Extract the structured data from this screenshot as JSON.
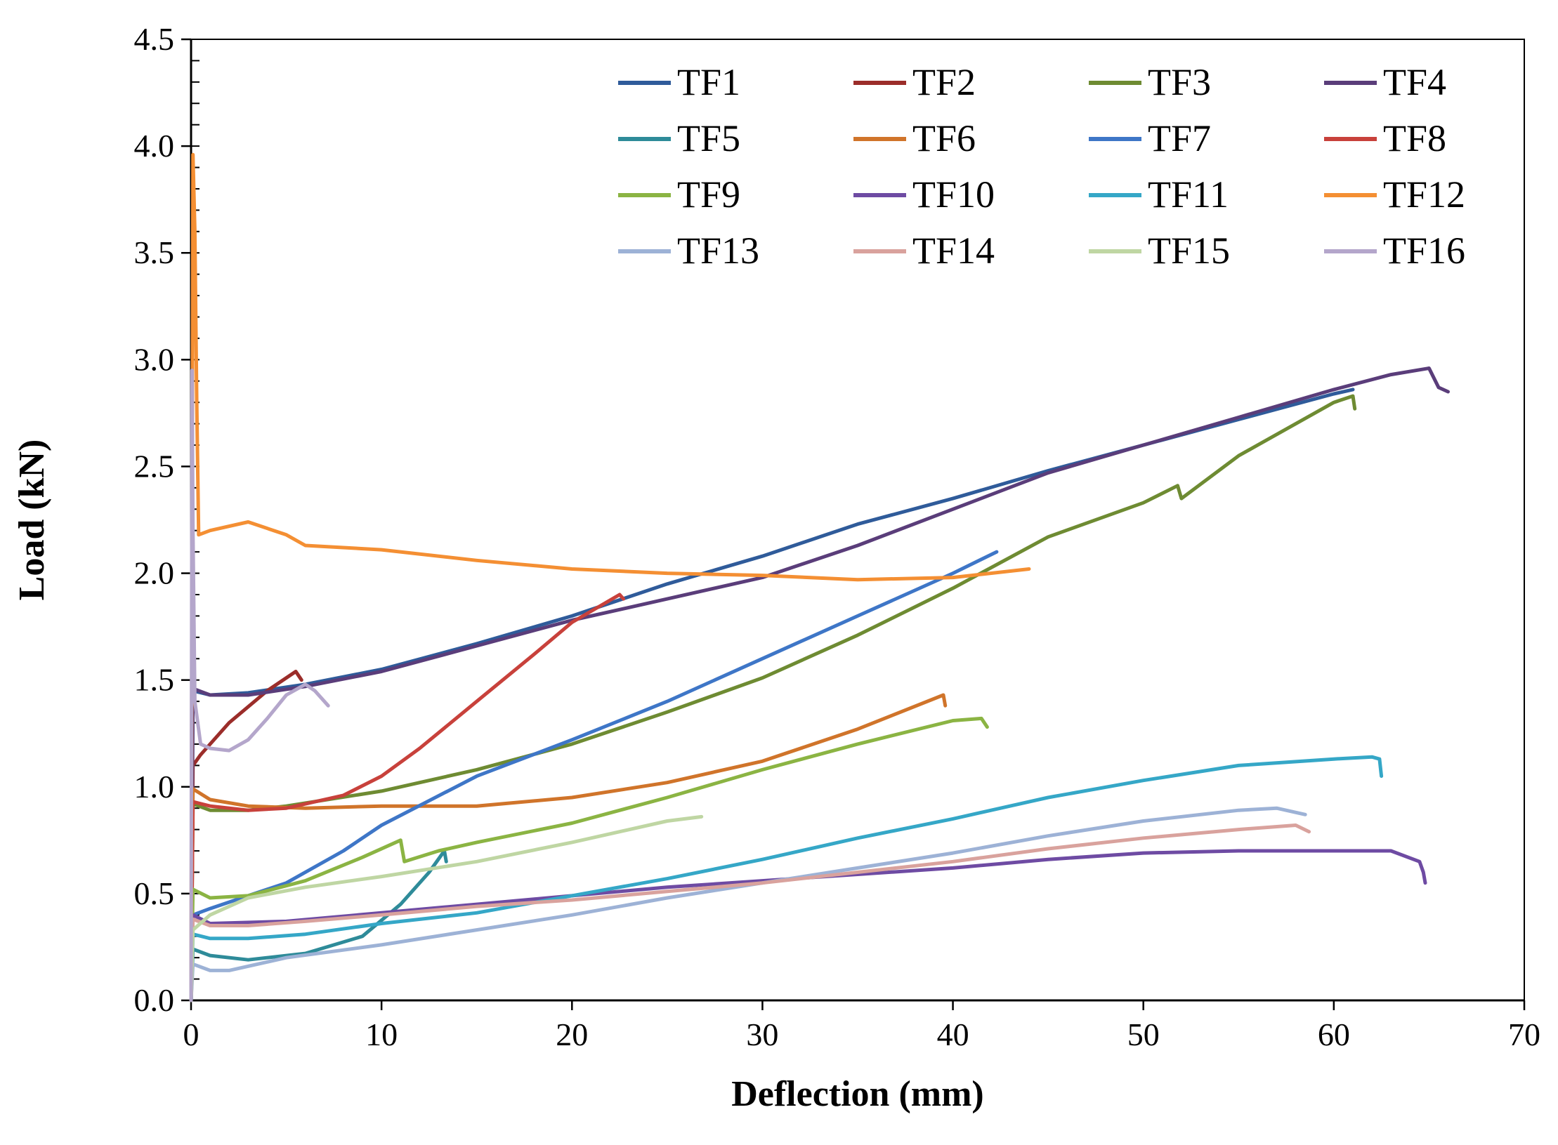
{
  "chart_data": {
    "type": "line",
    "title": "",
    "xlabel": "Deflection (mm)",
    "ylabel": "Load (kN)",
    "xlim": [
      0,
      70
    ],
    "ylim": [
      0,
      4.5
    ],
    "xticks": [
      0,
      10,
      20,
      30,
      40,
      50,
      60,
      70
    ],
    "yticks": [
      0.0,
      0.5,
      1.0,
      1.5,
      2.0,
      2.5,
      3.0,
      3.5,
      4.0,
      4.5
    ],
    "xtick_labels": [
      "0",
      "10",
      "20",
      "30",
      "40",
      "50",
      "60",
      "70"
    ],
    "ytick_labels": [
      "0.0",
      "0.5",
      "1.0",
      "1.5",
      "2.0",
      "2.5",
      "3.0",
      "3.5",
      "4.0",
      "4.5"
    ],
    "grid": false,
    "legend_position": "top-right",
    "legend_columns": 4,
    "series": [
      {
        "name": "TF1",
        "color": "#2F5B9A",
        "x": [
          0,
          0.1,
          1,
          3,
          6,
          10,
          15,
          20,
          25,
          30,
          35,
          40,
          45,
          50,
          55,
          60,
          61
        ],
        "y": [
          0,
          1.45,
          1.43,
          1.44,
          1.48,
          1.55,
          1.67,
          1.8,
          1.95,
          2.08,
          2.23,
          2.35,
          2.48,
          2.6,
          2.72,
          2.84,
          2.86
        ]
      },
      {
        "name": "TF2",
        "color": "#9B2D2A",
        "x": [
          0,
          0.1,
          0.5,
          2,
          4,
          5.5,
          5.8
        ],
        "y": [
          0,
          1.1,
          1.15,
          1.3,
          1.45,
          1.54,
          1.5
        ]
      },
      {
        "name": "TF3",
        "color": "#6E8B32",
        "x": [
          0,
          0.1,
          1,
          3,
          5,
          10,
          15,
          20,
          25,
          30,
          35,
          40,
          45,
          50,
          51.8,
          52,
          55,
          60,
          61,
          61.1
        ],
        "y": [
          0,
          0.92,
          0.89,
          0.89,
          0.91,
          0.98,
          1.08,
          1.2,
          1.35,
          1.51,
          1.71,
          1.93,
          2.17,
          2.33,
          2.41,
          2.35,
          2.55,
          2.8,
          2.83,
          2.77
        ]
      },
      {
        "name": "TF4",
        "color": "#5A3D7A",
        "x": [
          0,
          0.1,
          1,
          3,
          6,
          10,
          15,
          20,
          25,
          30,
          35,
          40,
          45,
          50,
          55,
          60,
          63,
          65,
          65.5,
          66
        ],
        "y": [
          0,
          1.46,
          1.43,
          1.43,
          1.47,
          1.54,
          1.66,
          1.78,
          1.88,
          1.98,
          2.13,
          2.3,
          2.47,
          2.6,
          2.73,
          2.86,
          2.93,
          2.96,
          2.87,
          2.85
        ]
      },
      {
        "name": "TF5",
        "color": "#2E8B99",
        "x": [
          0,
          0.1,
          1,
          3,
          6,
          9,
          11,
          12.5,
          13.3,
          13.4
        ],
        "y": [
          0,
          0.24,
          0.21,
          0.19,
          0.22,
          0.3,
          0.45,
          0.6,
          0.7,
          0.65
        ]
      },
      {
        "name": "TF6",
        "color": "#D0742A",
        "x": [
          0,
          0.1,
          1,
          3,
          6,
          10,
          15,
          20,
          25,
          30,
          35,
          39.5,
          39.6
        ],
        "y": [
          0,
          0.99,
          0.94,
          0.91,
          0.9,
          0.91,
          0.91,
          0.95,
          1.02,
          1.12,
          1.27,
          1.43,
          1.38
        ]
      },
      {
        "name": "TF7",
        "color": "#3E76C7",
        "x": [
          0,
          0.1,
          1,
          3,
          5,
          8,
          10,
          15,
          20,
          25,
          30,
          35,
          40,
          42.3
        ],
        "y": [
          0,
          0.4,
          0.43,
          0.49,
          0.55,
          0.7,
          0.82,
          1.05,
          1.22,
          1.4,
          1.6,
          1.8,
          2.0,
          2.1
        ]
      },
      {
        "name": "TF8",
        "color": "#C8413B",
        "x": [
          0,
          0.1,
          1,
          3,
          5,
          8,
          10,
          12,
          15,
          18,
          20,
          22.5,
          22.7
        ],
        "y": [
          0,
          0.93,
          0.91,
          0.89,
          0.9,
          0.96,
          1.05,
          1.18,
          1.4,
          1.62,
          1.77,
          1.9,
          1.88
        ]
      },
      {
        "name": "TF9",
        "color": "#8BB443",
        "x": [
          0,
          0.1,
          1,
          3,
          6,
          9,
          11,
          11.2,
          13,
          15,
          20,
          25,
          30,
          35,
          40,
          41.5,
          41.8
        ],
        "y": [
          0,
          0.52,
          0.48,
          0.49,
          0.56,
          0.67,
          0.75,
          0.65,
          0.7,
          0.74,
          0.83,
          0.95,
          1.08,
          1.2,
          1.31,
          1.32,
          1.28
        ]
      },
      {
        "name": "TF10",
        "color": "#6E4BA3",
        "x": [
          0,
          0.1,
          1,
          5,
          10,
          15,
          20,
          25,
          30,
          35,
          40,
          45,
          50,
          55,
          60,
          63,
          64.5,
          64.7,
          64.8
        ],
        "y": [
          0,
          0.4,
          0.36,
          0.37,
          0.41,
          0.45,
          0.49,
          0.53,
          0.56,
          0.59,
          0.62,
          0.66,
          0.69,
          0.7,
          0.7,
          0.7,
          0.65,
          0.6,
          0.55
        ]
      },
      {
        "name": "TF11",
        "color": "#35A7C7",
        "x": [
          0,
          0.1,
          1,
          3,
          6,
          10,
          15,
          20,
          25,
          30,
          35,
          40,
          45,
          50,
          55,
          60,
          62,
          62.4,
          62.5
        ],
        "y": [
          0,
          0.31,
          0.29,
          0.29,
          0.31,
          0.36,
          0.41,
          0.49,
          0.57,
          0.66,
          0.76,
          0.85,
          0.95,
          1.03,
          1.1,
          1.13,
          1.14,
          1.13,
          1.05
        ]
      },
      {
        "name": "TF12",
        "color": "#F48F33",
        "x": [
          0,
          0.1,
          0.2,
          0.3,
          0.4,
          1,
          3,
          5,
          6,
          10,
          15,
          20,
          25,
          30,
          35,
          40,
          44
        ],
        "y": [
          0,
          3.96,
          3.6,
          2.8,
          2.18,
          2.2,
          2.24,
          2.18,
          2.13,
          2.11,
          2.06,
          2.02,
          2.0,
          1.99,
          1.97,
          1.98,
          2.02
        ]
      },
      {
        "name": "TF13",
        "color": "#9DB2D6",
        "x": [
          0,
          0.1,
          1,
          2,
          5,
          10,
          15,
          20,
          25,
          30,
          35,
          40,
          45,
          50,
          55,
          57,
          58.5
        ],
        "y": [
          0,
          0.17,
          0.14,
          0.14,
          0.2,
          0.26,
          0.33,
          0.4,
          0.48,
          0.55,
          0.62,
          0.69,
          0.77,
          0.84,
          0.89,
          0.9,
          0.87
        ]
      },
      {
        "name": "TF14",
        "color": "#D9A29D",
        "x": [
          0,
          0.1,
          1,
          3,
          6,
          10,
          15,
          20,
          25,
          30,
          35,
          40,
          45,
          50,
          55,
          58,
          58.7
        ],
        "y": [
          0,
          0.38,
          0.35,
          0.35,
          0.37,
          0.4,
          0.44,
          0.47,
          0.51,
          0.55,
          0.6,
          0.65,
          0.71,
          0.76,
          0.8,
          0.82,
          0.79
        ]
      },
      {
        "name": "TF15",
        "color": "#BFD6A3",
        "x": [
          0,
          0.1,
          1,
          3,
          6,
          10,
          15,
          20,
          25,
          26.8
        ],
        "y": [
          0,
          0.33,
          0.4,
          0.48,
          0.53,
          0.58,
          0.65,
          0.74,
          0.84,
          0.86
        ]
      },
      {
        "name": "TF16",
        "color": "#B4A6CB",
        "x": [
          0,
          0.05,
          0.1,
          0.2,
          0.5,
          1,
          2,
          3,
          4,
          5,
          6,
          6.5,
          7.2
        ],
        "y": [
          0,
          2.95,
          2.2,
          1.4,
          1.2,
          1.18,
          1.17,
          1.22,
          1.32,
          1.43,
          1.48,
          1.45,
          1.38
        ]
      }
    ]
  }
}
